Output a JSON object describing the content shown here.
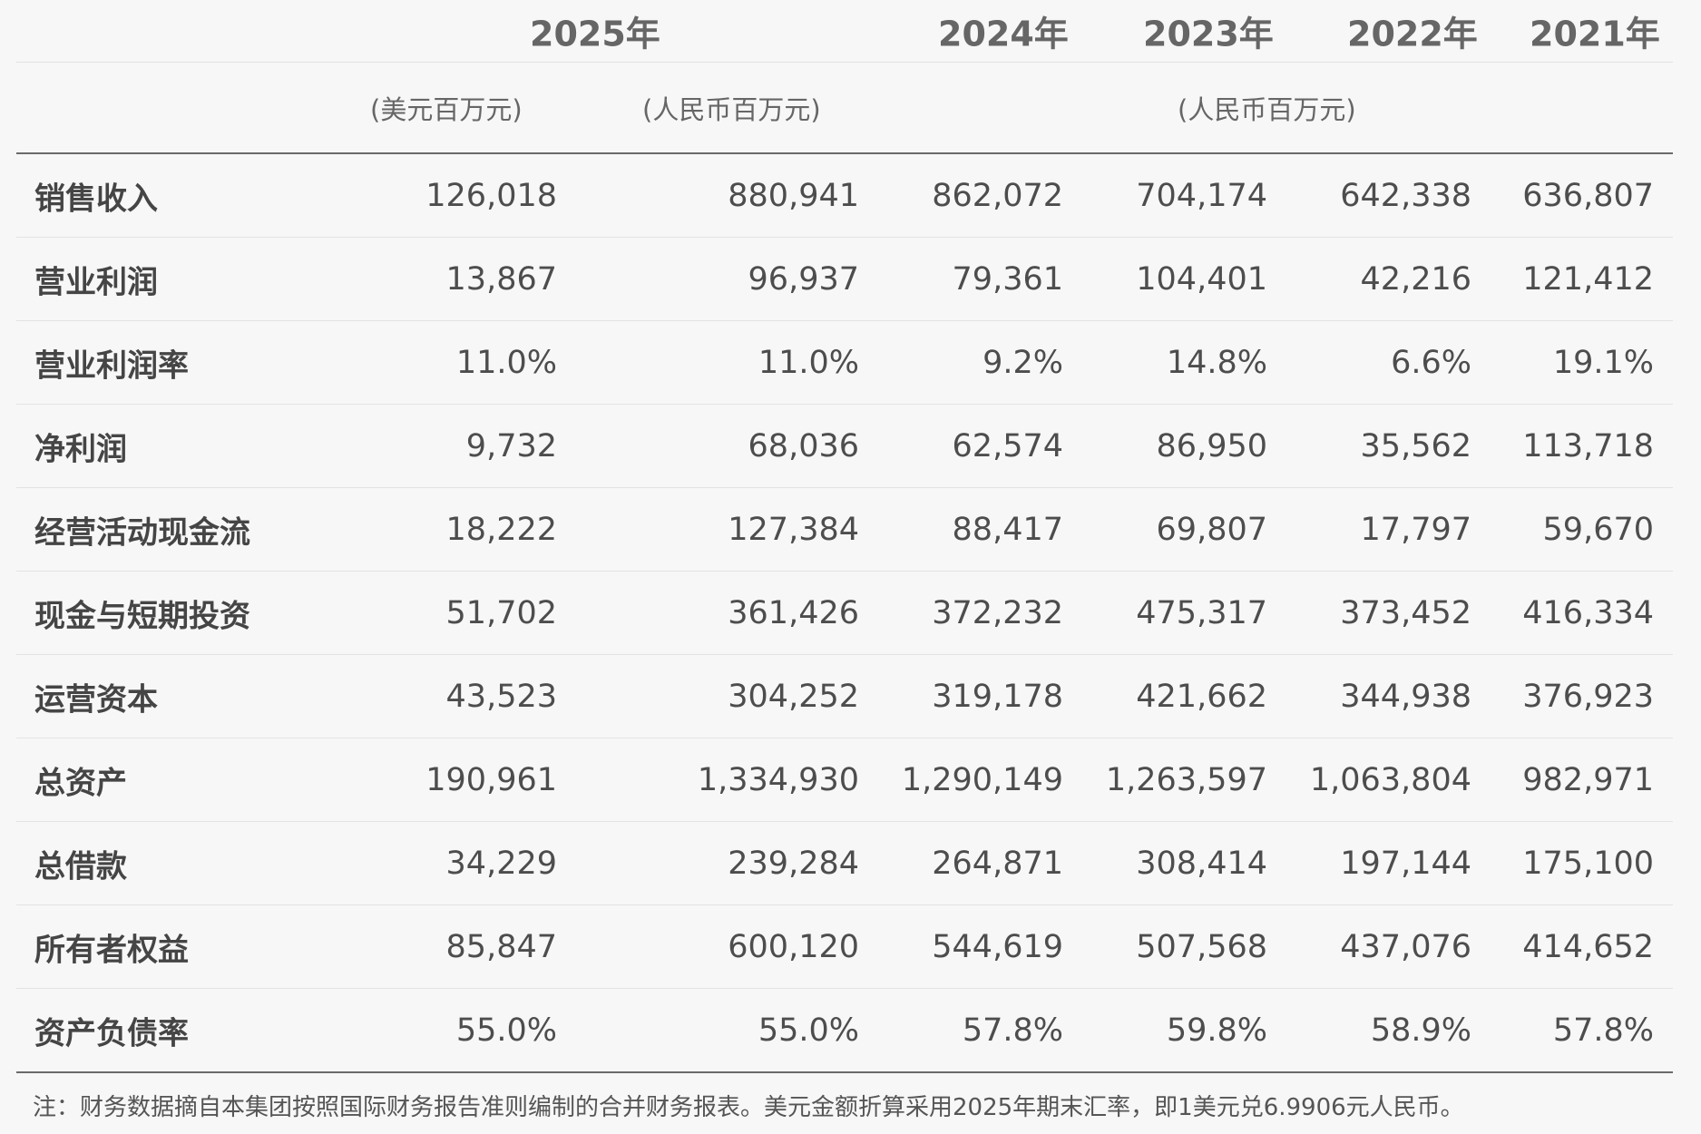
{
  "header": {
    "years": [
      "2025年",
      "2024年",
      "2023年",
      "2022年",
      "2021年"
    ],
    "units": {
      "usd": "(美元百万元)",
      "rmb_2025": "(人民币百万元)",
      "rmb_prior": "(人民币百万元)"
    }
  },
  "rows": [
    {
      "label": "销售收入",
      "values": [
        "126,018",
        "880,941",
        "862,072",
        "704,174",
        "642,338",
        "636,807"
      ]
    },
    {
      "label": "营业利润",
      "values": [
        "13,867",
        "96,937",
        "79,361",
        "104,401",
        "42,216",
        "121,412"
      ]
    },
    {
      "label": "营业利润率",
      "values": [
        "11.0%",
        "11.0%",
        "9.2%",
        "14.8%",
        "6.6%",
        "19.1%"
      ]
    },
    {
      "label": "净利润",
      "values": [
        "9,732",
        "68,036",
        "62,574",
        "86,950",
        "35,562",
        "113,718"
      ]
    },
    {
      "label": "经营活动现金流",
      "values": [
        "18,222",
        "127,384",
        "88,417",
        "69,807",
        "17,797",
        "59,670"
      ]
    },
    {
      "label": "现金与短期投资",
      "values": [
        "51,702",
        "361,426",
        "372,232",
        "475,317",
        "373,452",
        "416,334"
      ]
    },
    {
      "label": "运营资本",
      "values": [
        "43,523",
        "304,252",
        "319,178",
        "421,662",
        "344,938",
        "376,923"
      ]
    },
    {
      "label": "总资产",
      "values": [
        "190,961",
        "1,334,930",
        "1,290,149",
        "1,263,597",
        "1,063,804",
        "982,971"
      ]
    },
    {
      "label": "总借款",
      "values": [
        "34,229",
        "239,284",
        "264,871",
        "308,414",
        "197,144",
        "175,100"
      ]
    },
    {
      "label": "所有者权益",
      "values": [
        "85,847",
        "600,120",
        "544,619",
        "507,568",
        "437,076",
        "414,652"
      ]
    },
    {
      "label": "资产负债率",
      "values": [
        "55.0%",
        "55.0%",
        "57.8%",
        "59.8%",
        "58.9%",
        "57.8%"
      ]
    }
  ],
  "note": "注：财务数据摘自本集团按照国际财务报告准则编制的合并财务报表。美元金额折算采用2025年期末汇率，即1美元兑6.9906元人民币。"
}
